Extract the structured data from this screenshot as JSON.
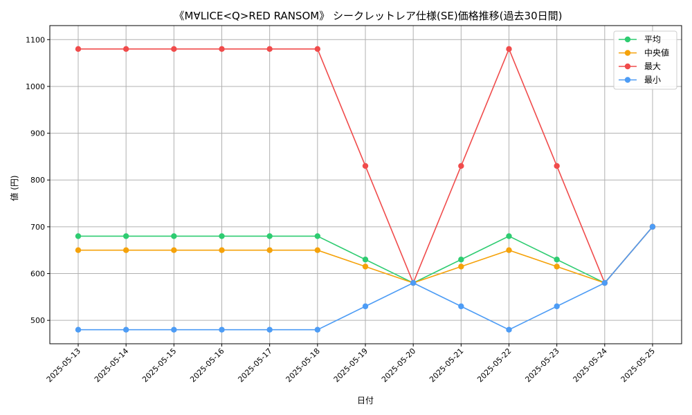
{
  "chart_data": {
    "type": "line",
    "title": "《M∀LICE<Q>RED RANSOM》 シークレットレア仕様(SE)価格推移(過去30日間)",
    "xlabel": "日付",
    "ylabel": "値 (円)",
    "x": [
      "2025-05-13",
      "2025-05-14",
      "2025-05-15",
      "2025-05-16",
      "2025-05-17",
      "2025-05-18",
      "2025-05-19",
      "2025-05-20",
      "2025-05-21",
      "2025-05-22",
      "2025-05-23",
      "2025-05-24",
      "2025-05-25"
    ],
    "yticks": [
      500,
      600,
      700,
      800,
      900,
      1000,
      1100
    ],
    "ylim": [
      450,
      1130
    ],
    "grid": true,
    "legend_position": "top-right",
    "series": [
      {
        "name": "平均",
        "color": "#2ecc71",
        "values": [
          680,
          680,
          680,
          680,
          680,
          680,
          630,
          580,
          630,
          680,
          630,
          580,
          700
        ]
      },
      {
        "name": "中央値",
        "color": "#f5a20a",
        "values": [
          650,
          650,
          650,
          650,
          650,
          650,
          615,
          580,
          615,
          650,
          615,
          580,
          700
        ]
      },
      {
        "name": "最大",
        "color": "#f04b4b",
        "values": [
          1080,
          1080,
          1080,
          1080,
          1080,
          1080,
          830,
          580,
          830,
          1080,
          830,
          580,
          700
        ]
      },
      {
        "name": "最小",
        "color": "#4d9cf5",
        "values": [
          480,
          480,
          480,
          480,
          480,
          480,
          530,
          580,
          530,
          480,
          530,
          580,
          700
        ]
      }
    ]
  }
}
